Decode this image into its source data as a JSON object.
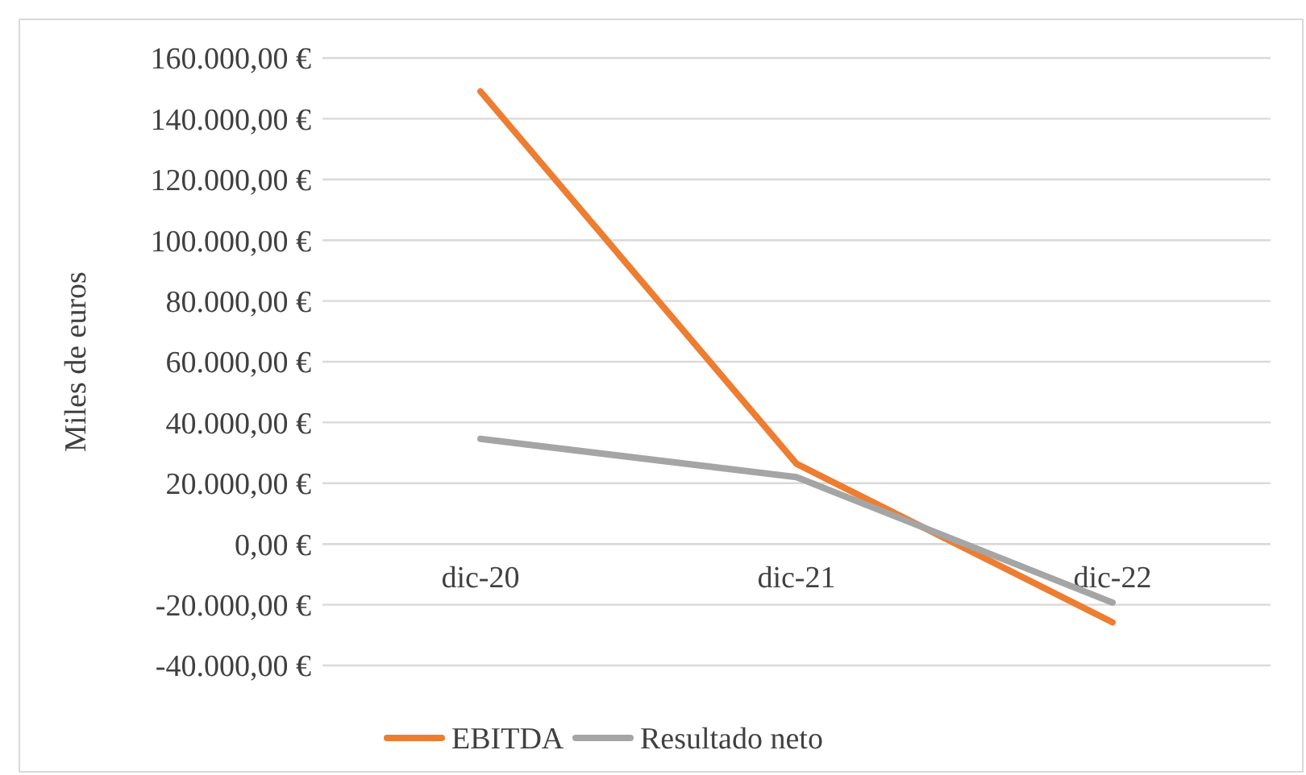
{
  "chart_data": {
    "type": "line",
    "ylabel": "Miles de euros",
    "categories": [
      "dic-20",
      "dic-21",
      "dic-22"
    ],
    "series": [
      {
        "name": "EBITDA",
        "color": "#ed7d31",
        "values": [
          149000,
          26400,
          -25800
        ]
      },
      {
        "name": "Resultado neto",
        "color": "#a5a5a5",
        "values": [
          34600,
          22000,
          -19300
        ]
      }
    ],
    "ylim": [
      -40000,
      160000
    ],
    "yticks": [
      {
        "value": -40000,
        "label": "-40.000,00 €"
      },
      {
        "value": -20000,
        "label": "-20.000,00 €"
      },
      {
        "value": 0,
        "label": "0,00 €"
      },
      {
        "value": 20000,
        "label": "20.000,00 €"
      },
      {
        "value": 40000,
        "label": "40.000,00 €"
      },
      {
        "value": 60000,
        "label": "60.000,00 €"
      },
      {
        "value": 80000,
        "label": "80.000,00 €"
      },
      {
        "value": 100000,
        "label": "100.000,00 €"
      },
      {
        "value": 120000,
        "label": "120.000,00 €"
      },
      {
        "value": 140000,
        "label": "140.000,00 €"
      },
      {
        "value": 160000,
        "label": "160.000,00 €"
      }
    ],
    "grid": "y",
    "legend": "bottom",
    "marker": "none",
    "line_style": "solid"
  }
}
